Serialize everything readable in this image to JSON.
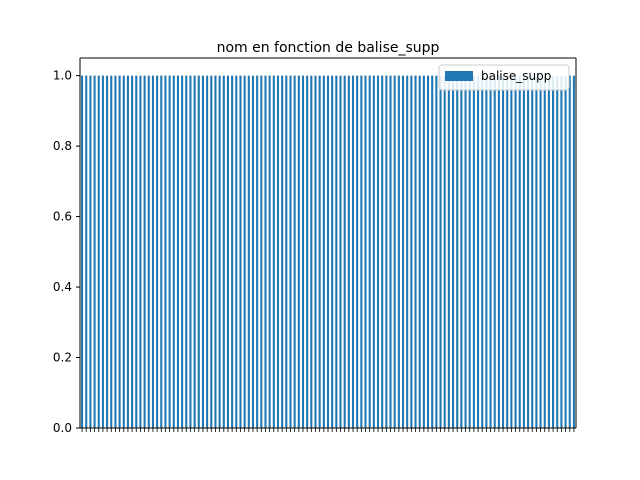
{
  "chart_data": {
    "type": "bar",
    "title": "nom en fonction de balise_supp",
    "xlabel": "",
    "ylabel": "",
    "ylim": [
      0,
      1.05
    ],
    "yticks": [
      "0.0",
      "0.2",
      "0.4",
      "0.6",
      "0.8",
      "1.0"
    ],
    "bar_count": 119,
    "categories_note": "x tick labels are dense, rotated 90° and overlapping; individual category names are not legible in the screenshot",
    "series": [
      {
        "name": "balise_supp",
        "value_per_bar": 1.0,
        "color": "#1f77b4"
      }
    ],
    "legend": {
      "position": "top-right",
      "entries": [
        "balise_supp"
      ]
    },
    "grid": false
  }
}
